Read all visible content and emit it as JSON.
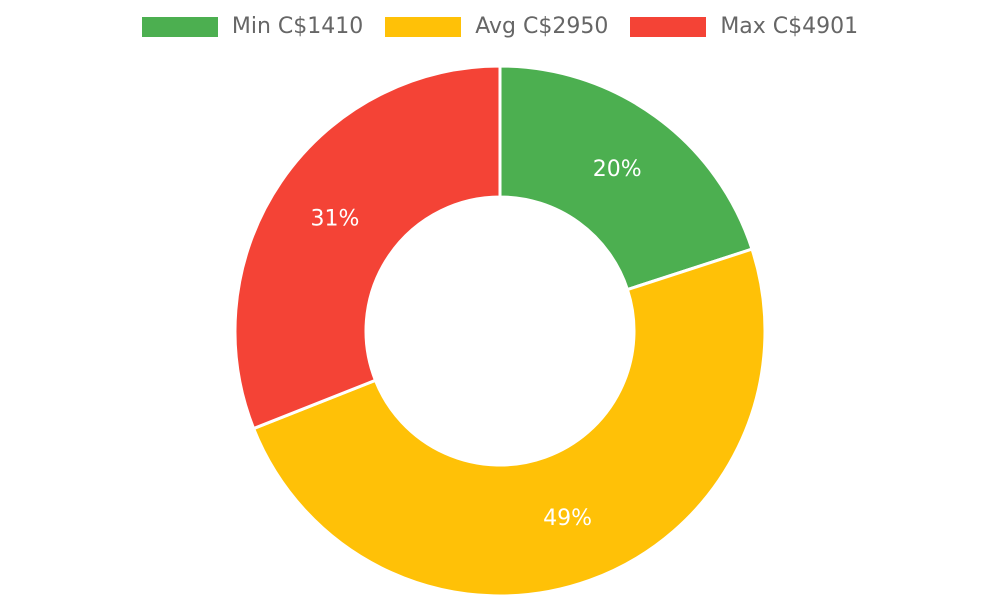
{
  "chart_data": {
    "type": "pie",
    "variant": "doughnut",
    "legend_position": "top",
    "series": [
      {
        "name": "Min C$1410",
        "value": 20,
        "label": "20%",
        "color": "#4CAF50"
      },
      {
        "name": "Avg C$2950",
        "value": 49,
        "label": "49%",
        "color": "#FFC107"
      },
      {
        "name": "Max C$4901",
        "value": 31,
        "label": "31%",
        "color": "#F44336"
      }
    ]
  },
  "legend": {
    "items": [
      {
        "label": "Min C$1410",
        "color": "#4CAF50"
      },
      {
        "label": "Avg C$2950",
        "color": "#FFC107"
      },
      {
        "label": "Max C$4901",
        "color": "#F44336"
      }
    ]
  }
}
